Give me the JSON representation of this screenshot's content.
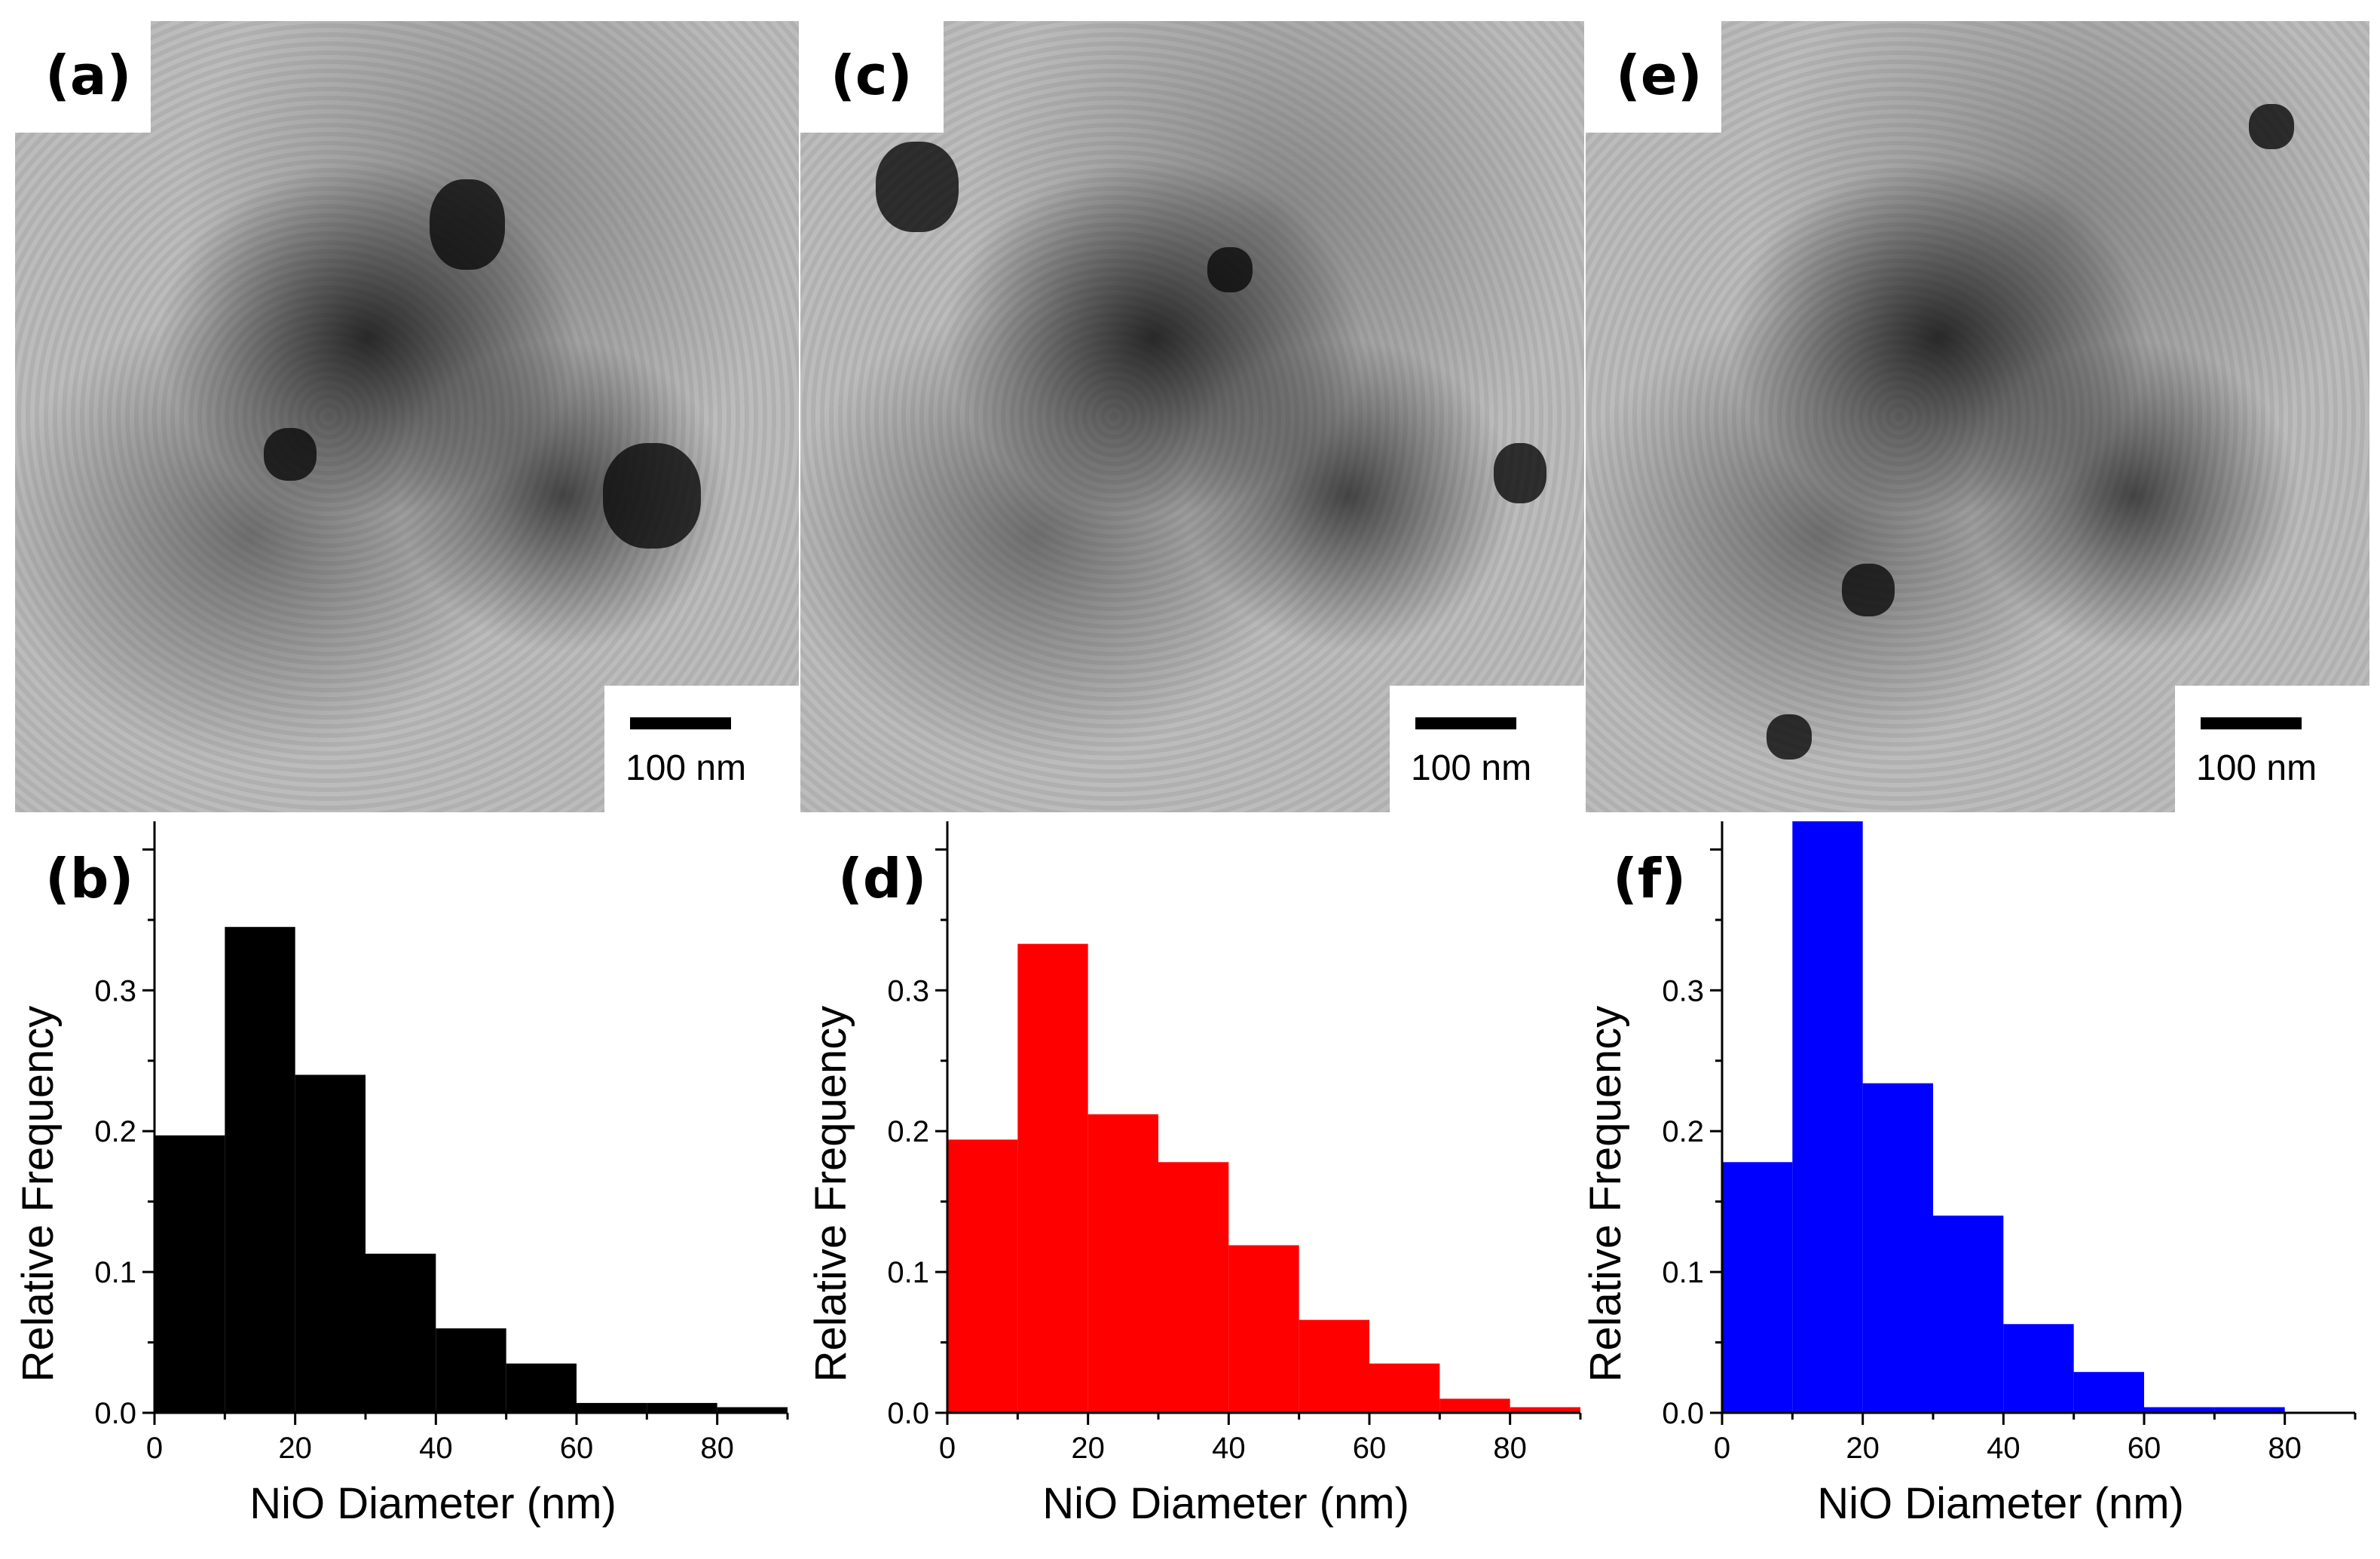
{
  "panels": {
    "a": "(a)",
    "b": "(b)",
    "c": "(c)",
    "d": "(d)",
    "e": "(e)",
    "f": "(f)"
  },
  "scale_bars": [
    "100 nm",
    "100 nm",
    "100 nm"
  ],
  "chart_data": [
    {
      "type": "bar",
      "panel": "(b)",
      "color": "#000000",
      "bin_width": 10,
      "bins": [
        0,
        10,
        20,
        30,
        40,
        50,
        60,
        70,
        80
      ],
      "values": [
        0.197,
        0.345,
        0.24,
        0.113,
        0.06,
        0.035,
        0.007,
        0.007,
        0.004
      ],
      "xlabel": "NiO Diameter (nm)",
      "ylabel": "Relative Frequency",
      "xlim": [
        0,
        90
      ],
      "ylim": [
        0,
        0.42
      ],
      "xticks": [
        "0",
        "20",
        "40",
        "60",
        "80"
      ],
      "yticks": [
        "0.0",
        "0.1",
        "0.2",
        "0.3"
      ]
    },
    {
      "type": "bar",
      "panel": "(d)",
      "color": "#ff0000",
      "bin_width": 10,
      "bins": [
        0,
        10,
        20,
        30,
        40,
        50,
        60,
        70,
        80
      ],
      "values": [
        0.194,
        0.333,
        0.212,
        0.178,
        0.119,
        0.066,
        0.035,
        0.01,
        0.004
      ],
      "xlabel": "NiO Diameter (nm)",
      "ylabel": "Relative Frequency",
      "xlim": [
        0,
        90
      ],
      "ylim": [
        0,
        0.42
      ],
      "xticks": [
        "0",
        "20",
        "40",
        "60",
        "80"
      ],
      "yticks": [
        "0.0",
        "0.1",
        "0.2",
        "0.3"
      ]
    },
    {
      "type": "bar",
      "panel": "(f)",
      "color": "#0000ff",
      "bin_width": 10,
      "bins": [
        0,
        10,
        20,
        30,
        40,
        50,
        60,
        70
      ],
      "values": [
        0.178,
        0.42,
        0.234,
        0.14,
        0.063,
        0.029,
        0.004,
        0.004
      ],
      "xlabel": "NiO Diameter (nm)",
      "ylabel": "Relative Frequency",
      "xlim": [
        0,
        90
      ],
      "ylim": [
        0,
        0.42
      ],
      "xticks": [
        "0",
        "20",
        "40",
        "60",
        "80"
      ],
      "yticks": [
        "0.0",
        "0.1",
        "0.2",
        "0.3"
      ]
    }
  ]
}
